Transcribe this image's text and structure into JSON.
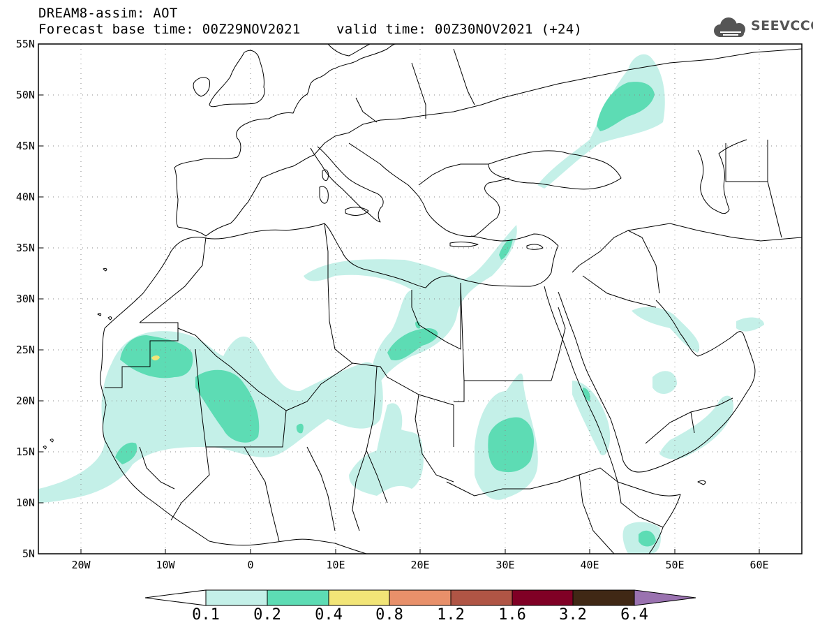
{
  "header": {
    "model_line": "DREAM8-assim: AOT",
    "base_time_line": "Forecast base time: 00Z29NOV2021",
    "valid_time_line": "valid time: 00Z30NOV2021 (+24)"
  },
  "logo": {
    "text": "SEEVCCC",
    "icon": "cloud-icon"
  },
  "map": {
    "lat_labels": [
      "55N",
      "50N",
      "45N",
      "40N",
      "35N",
      "30N",
      "25N",
      "20N",
      "15N",
      "10N",
      "5N"
    ],
    "lon_labels": [
      "20W",
      "10W",
      "0",
      "10E",
      "20E",
      "30E",
      "40E",
      "50E",
      "60E"
    ],
    "extent": {
      "lon": [
        -25,
        65
      ],
      "lat": [
        5,
        55
      ]
    }
  },
  "colorbar": {
    "labels": [
      "0.1",
      "0.2",
      "0.4",
      "0.8",
      "1.2",
      "1.6",
      "3.2",
      "6.4"
    ],
    "colors": [
      "#c4f0e8",
      "#5ddcb4",
      "#f2e577",
      "#e8906a",
      "#b05545",
      "#800025",
      "#402815",
      "#9a72b0"
    ]
  }
}
